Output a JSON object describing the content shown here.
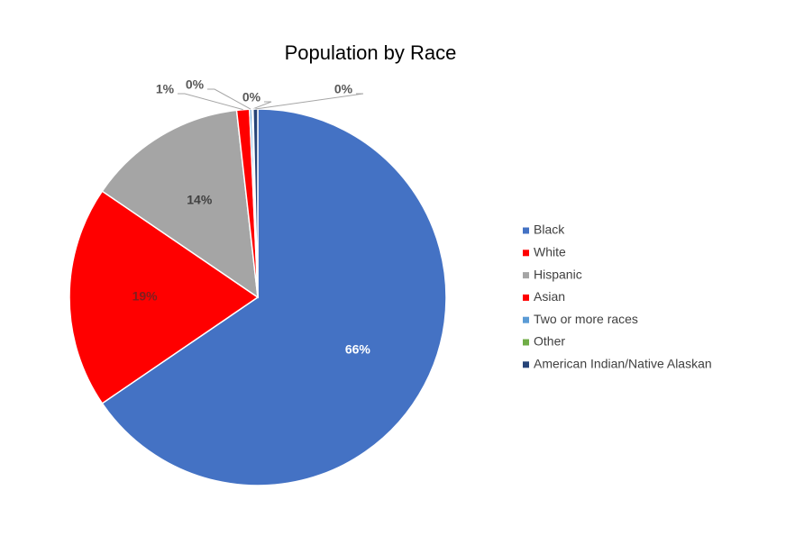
{
  "chart_data": {
    "type": "pie",
    "title": "Population by Race",
    "categories": [
      "Black",
      "White",
      "Hispanic",
      "Asian",
      "Two or more races",
      "Other",
      "American Indian/Native Alaskan"
    ],
    "values": [
      65.6,
      19.1,
      13.7,
      1.1,
      0.2,
      0.1,
      0.4
    ],
    "value_labels": [
      "66%",
      "19%",
      "14%",
      "1%",
      "0%",
      "0%",
      "0%"
    ],
    "colors": [
      "#4472c4",
      "#ff0000",
      "#a5a5a5",
      "#ff0000",
      "#5b9bd5",
      "#70ad47",
      "#264478"
    ],
    "legend": "right"
  }
}
